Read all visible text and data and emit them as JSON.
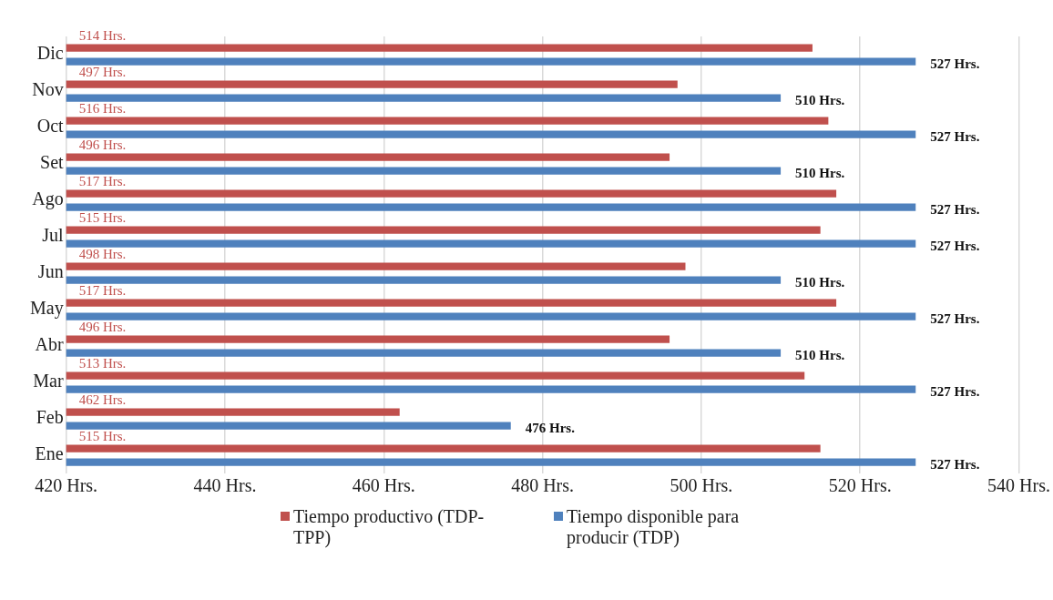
{
  "chart_data": {
    "type": "bar",
    "orientation": "horizontal",
    "categories": [
      "Dic",
      "Nov",
      "Oct",
      "Set",
      "Ago",
      "Jul",
      "Jun",
      "May",
      "Abr",
      "Mar",
      "Feb",
      "Ene"
    ],
    "series": [
      {
        "name": "Tiempo productivo (TDP-TPP)",
        "color": "#c0504d",
        "values": [
          514,
          497,
          516,
          496,
          517,
          515,
          498,
          517,
          496,
          513,
          462,
          515
        ],
        "value_labels": [
          "514 Hrs.",
          "497 Hrs.",
          "516 Hrs.",
          "496 Hrs.",
          "517 Hrs.",
          "515 Hrs.",
          "498 Hrs.",
          "517 Hrs.",
          "496 Hrs.",
          "513 Hrs.",
          "462 Hrs.",
          "515 Hrs."
        ]
      },
      {
        "name": "Tiempo disponible para producir (TDP)",
        "color": "#4f81bd",
        "values": [
          527,
          510,
          527,
          510,
          527,
          527,
          510,
          527,
          510,
          527,
          476,
          527
        ],
        "value_labels": [
          "527 Hrs.",
          "510 Hrs.",
          "527 Hrs.",
          "510 Hrs.",
          "527 Hrs.",
          "527 Hrs.",
          "510 Hrs.",
          "527 Hrs.",
          "510 Hrs.",
          "527 Hrs.",
          "476 Hrs.",
          "527 Hrs."
        ]
      }
    ],
    "xlim": [
      420,
      540
    ],
    "xticks": [
      {
        "value": 420,
        "label": "420 Hrs."
      },
      {
        "value": 440,
        "label": "440 Hrs."
      },
      {
        "value": 460,
        "label": "460 Hrs."
      },
      {
        "value": 480,
        "label": "480 Hrs."
      },
      {
        "value": 500,
        "label": "500 Hrs."
      },
      {
        "value": 520,
        "label": "520 Hrs."
      },
      {
        "value": 540,
        "label": "540 Hrs."
      }
    ],
    "grid": "x",
    "legend": "bottom"
  }
}
